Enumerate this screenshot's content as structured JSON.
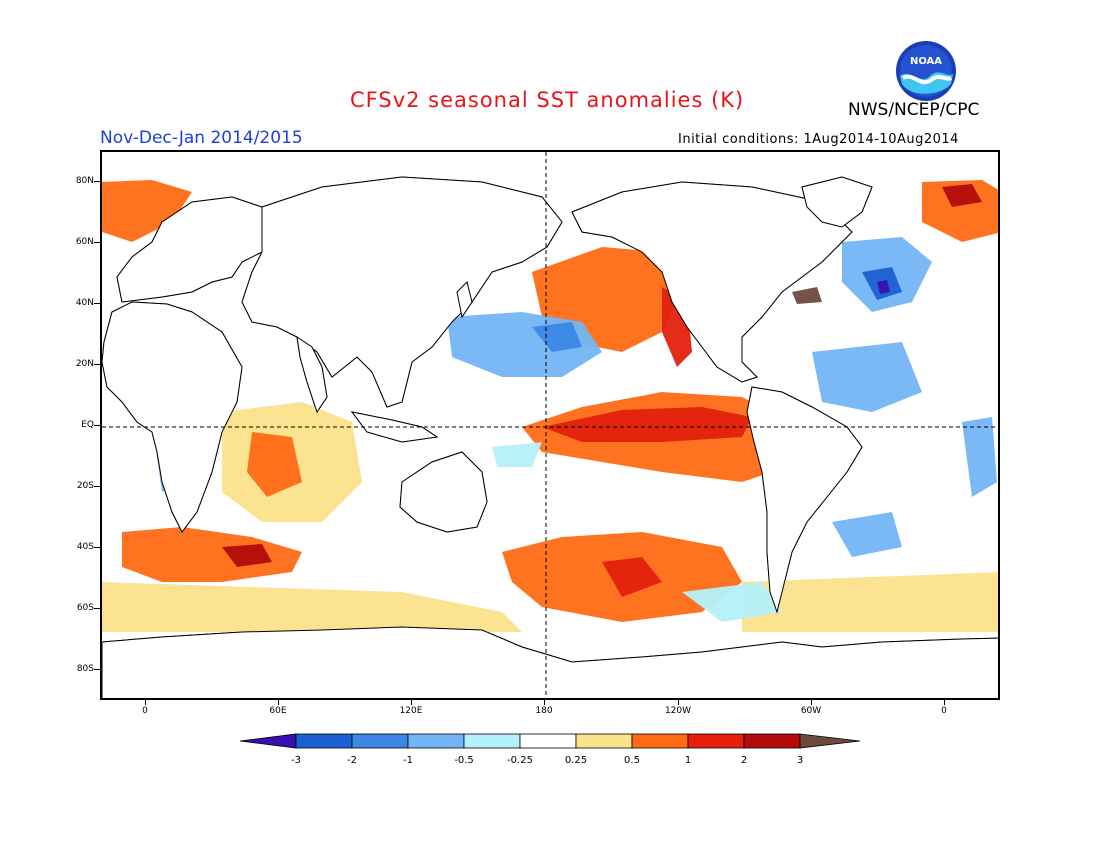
{
  "header": {
    "title": "CFSv2 seasonal SST anomalies (K)",
    "agency": "NWS/NCEP/CPC",
    "period": "Nov-Dec-Jan 2014/2015",
    "initial_conditions": "Initial conditions: 1Aug2014-10Aug2014",
    "logo_text": "NOAA"
  },
  "colors": {
    "title": "#e8141a",
    "period": "#1f3fd6",
    "scale": [
      "#3a0fb0",
      "#1b5fd4",
      "#3c87e6",
      "#73b5f5",
      "#b4f0fa",
      "#ffffff",
      "#ffffff",
      "#fbe28c",
      "#ff6a14",
      "#e4200d",
      "#b30a0a",
      "#6e4a3c"
    ]
  },
  "axes": {
    "lat_labels": [
      "80N",
      "60N",
      "40N",
      "20N",
      "EQ",
      "20S",
      "40S",
      "60S",
      "80S"
    ],
    "lon_labels": [
      "0",
      "60E",
      "120E",
      "180",
      "120W",
      "60W",
      "0"
    ]
  },
  "colorbar": {
    "labels": [
      "-3",
      "-2",
      "-1",
      "-0.5",
      "-0.25",
      "0.25",
      "0.5",
      "1",
      "2",
      "3"
    ]
  }
}
